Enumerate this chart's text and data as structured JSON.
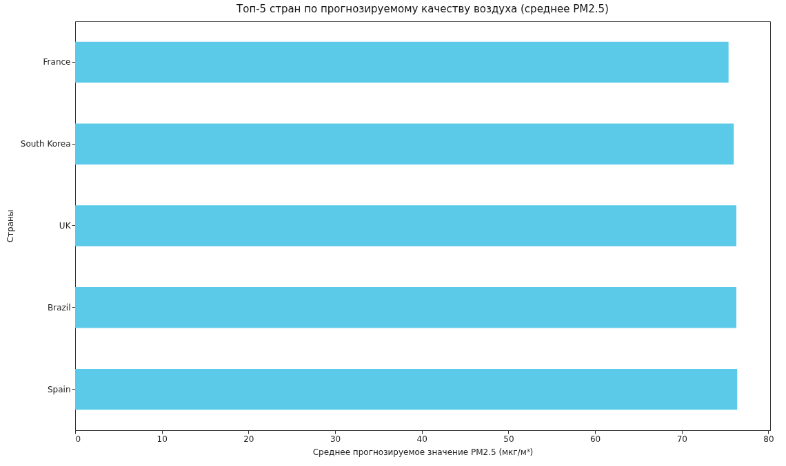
{
  "chart_data": {
    "type": "bar",
    "orientation": "horizontal",
    "title": "Топ-5 стран по прогнозируемому качеству воздуха (среднее PM2.5)",
    "xlabel": "Среднее прогнозируемое значение PM2.5 (мкг/м³)",
    "ylabel": "Страны",
    "categories": [
      "France",
      "South Korea",
      "UK",
      "Brazil",
      "Spain"
    ],
    "values": [
      75.4,
      76.0,
      76.3,
      76.3,
      76.4
    ],
    "color": "#5bc9e8",
    "xlim": [
      0,
      80.2
    ],
    "xticks": [
      0,
      10,
      20,
      30,
      40,
      50,
      60,
      70,
      80
    ],
    "grid": false
  }
}
